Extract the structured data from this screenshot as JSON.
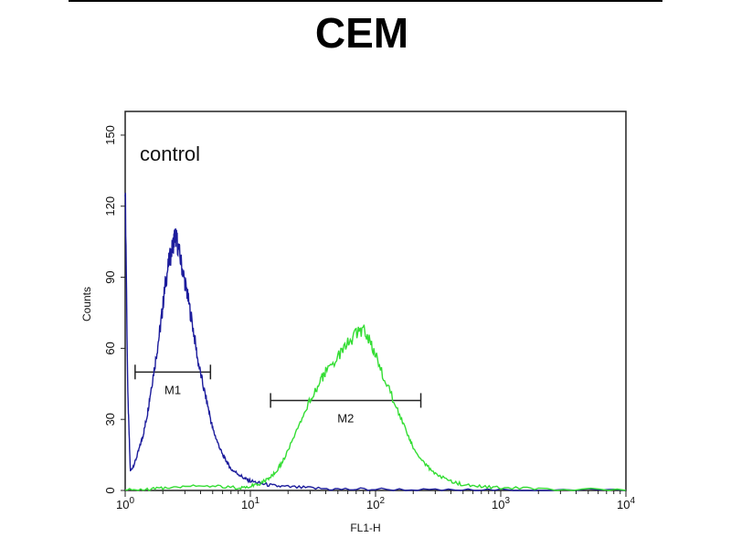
{
  "chart_data": {
    "type": "line",
    "title": "CEM",
    "xlabel": "FL1-H",
    "ylabel": "Counts",
    "x_scale": "log",
    "xlim": [
      1,
      10000
    ],
    "ylim": [
      0,
      160
    ],
    "x_ticks": [
      {
        "value": 1,
        "base": "10",
        "exp": "0"
      },
      {
        "value": 10,
        "base": "10",
        "exp": "1"
      },
      {
        "value": 100,
        "base": "10",
        "exp": "2"
      },
      {
        "value": 1000,
        "base": "10",
        "exp": "3"
      },
      {
        "value": 10000,
        "base": "10",
        "exp": "4"
      }
    ],
    "y_ticks": [
      0,
      30,
      60,
      90,
      120,
      150
    ],
    "grid": false,
    "annotation": "control",
    "series": [
      {
        "color": "#1c1c9c",
        "x": [
          1.0,
          1.05,
          1.1,
          1.2,
          1.3,
          1.4,
          1.5,
          1.6,
          1.75,
          1.9,
          2.0,
          2.1,
          2.25,
          2.4,
          2.5,
          2.6,
          2.8,
          3.0,
          3.2,
          3.5,
          3.8,
          4.2,
          4.6,
          5.0,
          5.5,
          6.0,
          6.5,
          7.0,
          8.0,
          9.0,
          10,
          12,
          15,
          20,
          30,
          50,
          100,
          300,
          1000,
          10000
        ],
        "y": [
          130,
          40,
          8,
          12,
          18,
          24,
          32,
          42,
          55,
          68,
          78,
          88,
          97,
          103,
          108,
          105,
          96,
          88,
          80,
          68,
          55,
          44,
          35,
          26,
          20,
          15,
          12,
          9,
          7,
          5,
          4,
          3,
          2,
          1.5,
          1,
          0.5,
          0.5,
          0,
          0,
          0
        ]
      },
      {
        "color": "#33dd33",
        "x": [
          1.0,
          1.5,
          2.0,
          3.0,
          5.0,
          8.0,
          10,
          12,
          14,
          16,
          18,
          20,
          25,
          30,
          35,
          40,
          50,
          60,
          70,
          80,
          90,
          100,
          120,
          150,
          180,
          200,
          250,
          300,
          400,
          500,
          700,
          1000,
          2000,
          10000
        ],
        "y": [
          0,
          0.5,
          1,
          2,
          2,
          1,
          2,
          3,
          5,
          8,
          12,
          17,
          28,
          38,
          45,
          50,
          56,
          62,
          66,
          68,
          64,
          57,
          46,
          34,
          24,
          18,
          11,
          7,
          4,
          2.5,
          1.5,
          1,
          0.5,
          0
        ]
      }
    ],
    "markers": [
      {
        "label": "M1",
        "x_start": 1.2,
        "x_end": 4.8,
        "y": 50
      },
      {
        "label": "M2",
        "x_start": 14.5,
        "x_end": 230,
        "y": 38
      }
    ]
  }
}
